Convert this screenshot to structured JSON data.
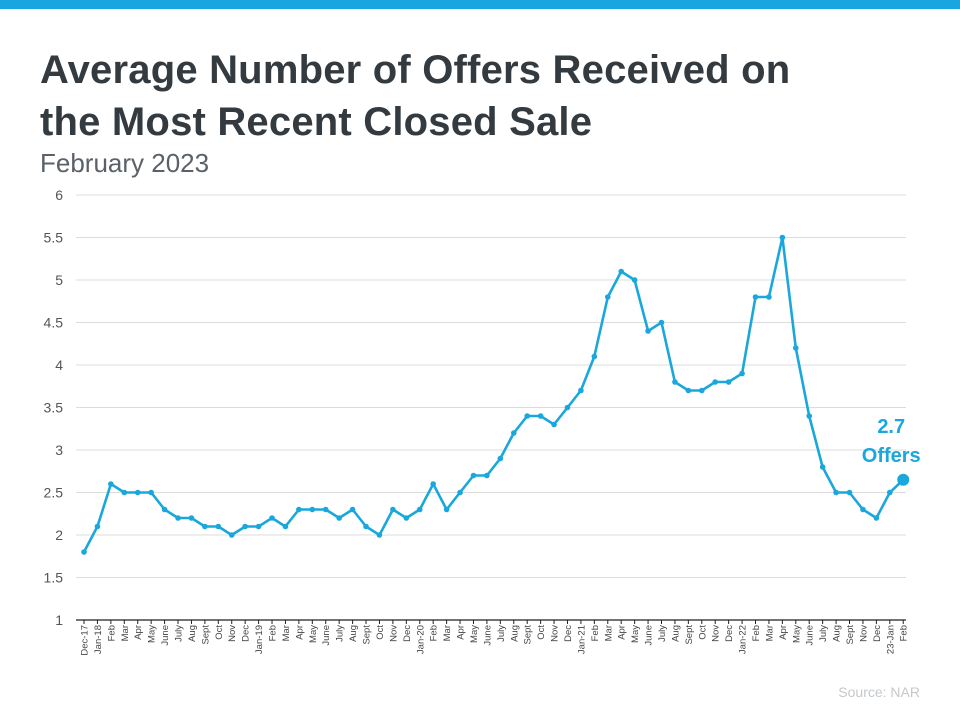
{
  "colors": {
    "accent": "#1aa7dc",
    "top_bar": "#19a6e0",
    "grid": "#dcdcdc",
    "text": "#333a40"
  },
  "header": {
    "title_line1": "Average Number of Offers Received on",
    "title_line2": "the Most Recent Closed Sale",
    "subtitle": "February 2023"
  },
  "source": "Source: NAR",
  "chart_data": {
    "type": "line",
    "title": "Average Number of Offers Received on the Most Recent Closed Sale",
    "subtitle": "February 2023",
    "xlabel": "",
    "ylabel": "",
    "ylim": [
      1,
      6
    ],
    "yticks": [
      "1",
      "1.5",
      "2",
      "2.5",
      "3",
      "3.5",
      "4",
      "4.5",
      "5",
      "5.5",
      "6"
    ],
    "grid": true,
    "categories": [
      "Dec-17",
      "Jan-18",
      "Feb",
      "Mar",
      "Apr",
      "May",
      "June",
      "July",
      "Aug",
      "Sept",
      "Oct",
      "Nov",
      "Dec",
      "Jan-19",
      "Feb",
      "Mar",
      "Apr",
      "May",
      "June",
      "July",
      "Aug",
      "Sept",
      "Oct",
      "Nov",
      "Dec",
      "Jan-20",
      "Feb",
      "Mar",
      "Apr",
      "May",
      "June",
      "July",
      "Aug",
      "Sept",
      "Oct",
      "Nov",
      "Dec",
      "Jan-21",
      "Feb",
      "Mar",
      "Apr",
      "May",
      "June",
      "July",
      "Aug",
      "Sept",
      "Oct",
      "Nov",
      "Dec",
      "Jan-22",
      "Feb",
      "Mar",
      "Apr",
      "May",
      "June",
      "July",
      "Aug",
      "Sept",
      "Nov",
      "Dec",
      "23-Jan",
      "Feb"
    ],
    "values": [
      1.8,
      2.1,
      2.6,
      2.5,
      2.5,
      2.5,
      2.3,
      2.2,
      2.2,
      2.1,
      2.1,
      2.0,
      2.1,
      2.1,
      2.2,
      2.1,
      2.3,
      2.3,
      2.3,
      2.2,
      2.3,
      2.1,
      2.0,
      2.3,
      2.2,
      2.3,
      2.6,
      2.3,
      2.5,
      2.7,
      2.7,
      2.9,
      3.2,
      3.4,
      3.4,
      3.3,
      3.5,
      3.7,
      4.1,
      4.8,
      5.1,
      5.0,
      4.4,
      4.5,
      3.8,
      3.7,
      3.7,
      3.8,
      3.8,
      3.9,
      4.8,
      4.8,
      5.5,
      4.2,
      3.4,
      2.8,
      2.5,
      2.5,
      2.3,
      2.2,
      2.5,
      2.65
    ],
    "annotation": {
      "line1": "2.7",
      "line2": "Offers"
    }
  }
}
